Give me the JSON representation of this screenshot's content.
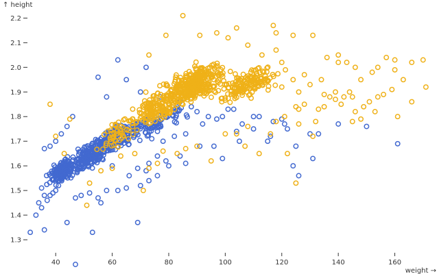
{
  "chart_data": {
    "type": "scatter",
    "title": "",
    "xlabel": "weight →",
    "ylabel": "↑ height",
    "xlim": [
      30,
      172
    ],
    "ylim": [
      1.25,
      2.24
    ],
    "x_ticks": [
      40,
      60,
      80,
      100,
      120,
      140,
      160
    ],
    "y_ticks": [
      1.3,
      1.4,
      1.5,
      1.6,
      1.7,
      1.8,
      1.9,
      2.0,
      2.1,
      2.2
    ],
    "grid": false,
    "legend": "none",
    "series": [
      {
        "color": "#4269d0",
        "points": [
          [
            47,
            1.2
          ],
          [
            31,
            1.33
          ],
          [
            36,
            1.34
          ],
          [
            53,
            1.33
          ],
          [
            44,
            1.37
          ],
          [
            69,
            1.37
          ],
          [
            33,
            1.4
          ],
          [
            35,
            1.43
          ],
          [
            34,
            1.45
          ],
          [
            37,
            1.46
          ],
          [
            36,
            1.48
          ],
          [
            38,
            1.48
          ],
          [
            39,
            1.49
          ],
          [
            35,
            1.51
          ],
          [
            40,
            1.5
          ],
          [
            41,
            1.52
          ],
          [
            55,
            1.47
          ],
          [
            56,
            1.45
          ],
          [
            47,
            1.47
          ],
          [
            49,
            1.48
          ],
          [
            52,
            1.49
          ],
          [
            58,
            1.5
          ],
          [
            62,
            1.5
          ],
          [
            65,
            1.51
          ],
          [
            70,
            1.52
          ],
          [
            73,
            1.54
          ],
          [
            76,
            1.56
          ],
          [
            69,
            1.59
          ],
          [
            73,
            1.61
          ],
          [
            80,
            1.6
          ],
          [
            86,
            1.61
          ],
          [
            99,
            1.63
          ],
          [
            96,
            1.68
          ],
          [
            105,
            1.7
          ],
          [
            104,
            1.74
          ],
          [
            110,
            1.75
          ],
          [
            115,
            1.7
          ],
          [
            116,
            1.72
          ],
          [
            122,
            1.75
          ],
          [
            125,
            1.68
          ],
          [
            124,
            1.6
          ],
          [
            131,
            1.63
          ],
          [
            130,
            1.73
          ],
          [
            133,
            1.73
          ],
          [
            140,
            1.77
          ],
          [
            150,
            1.76
          ],
          [
            161,
            1.69
          ],
          [
            126,
            1.56
          ],
          [
            62,
            2.03
          ],
          [
            72,
            2.0
          ],
          [
            65,
            1.95
          ],
          [
            55,
            1.96
          ],
          [
            58,
            1.88
          ],
          [
            70,
            1.9
          ],
          [
            77,
            1.88
          ],
          [
            84,
            1.86
          ],
          [
            88,
            1.84
          ],
          [
            90,
            1.82
          ],
          [
            94,
            1.8
          ],
          [
            99,
            1.8
          ],
          [
            101,
            1.83
          ],
          [
            103,
            1.83
          ],
          [
            110,
            1.8
          ],
          [
            112,
            1.8
          ],
          [
            117,
            1.78
          ],
          [
            120,
            1.79
          ],
          [
            121,
            1.77
          ],
          [
            106,
            1.77
          ],
          [
            97,
            1.79
          ],
          [
            92,
            1.77
          ],
          [
            86,
            1.73
          ],
          [
            82,
            1.72
          ],
          [
            78,
            1.7
          ],
          [
            76,
            1.74
          ],
          [
            74,
            1.71
          ],
          [
            42,
            1.73
          ],
          [
            40,
            1.7
          ],
          [
            38,
            1.68
          ],
          [
            36,
            1.67
          ],
          [
            46,
            1.8
          ],
          [
            44,
            1.76
          ],
          [
            58,
            1.72
          ],
          [
            60,
            1.6
          ],
          [
            84,
            1.64
          ],
          [
            76,
            1.64
          ],
          [
            91,
            1.68
          ],
          [
            79,
            1.62
          ],
          [
            72,
            1.58
          ],
          [
            66,
            1.56
          ]
        ],
        "clusters": [
          {
            "x": [
              35,
              50
            ],
            "y": [
              1.5,
              1.66
            ],
            "n": 160
          },
          {
            "x": [
              43,
              60
            ],
            "y": [
              1.54,
              1.73
            ],
            "n": 170
          },
          {
            "x": [
              50,
              68
            ],
            "y": [
              1.6,
              1.8
            ],
            "n": 120
          },
          {
            "x": [
              57,
              80
            ],
            "y": [
              1.64,
              1.84
            ],
            "n": 80
          },
          {
            "x": [
              65,
              95
            ],
            "y": [
              1.7,
              1.9
            ],
            "n": 40
          }
        ]
      },
      {
        "color": "#efb118",
        "points": [
          [
            85,
            2.21
          ],
          [
            104,
            2.16
          ],
          [
            108,
            2.09
          ],
          [
            117,
            2.17
          ],
          [
            118,
            2.14
          ],
          [
            124,
            2.13
          ],
          [
            131,
            2.13
          ],
          [
            97,
            2.14
          ],
          [
            91,
            2.13
          ],
          [
            101,
            2.12
          ],
          [
            79,
            2.13
          ],
          [
            73,
            2.05
          ],
          [
            136,
            2.04
          ],
          [
            140,
            2.05
          ],
          [
            140,
            2.02
          ],
          [
            143,
            2.02
          ],
          [
            146,
            2.0
          ],
          [
            152,
            1.98
          ],
          [
            148,
            1.95
          ],
          [
            154,
            2.0
          ],
          [
            157,
            2.04
          ],
          [
            160,
            2.03
          ],
          [
            160,
            1.99
          ],
          [
            166,
            2.02
          ],
          [
            170,
            2.03
          ],
          [
            171,
            1.92
          ],
          [
            163,
            1.95
          ],
          [
            159,
            1.91
          ],
          [
            156,
            1.89
          ],
          [
            154,
            1.88
          ],
          [
            151,
            1.86
          ],
          [
            149,
            1.84
          ],
          [
            148,
            1.79
          ],
          [
            144,
            1.9
          ],
          [
            145,
            1.88
          ],
          [
            146,
            1.82
          ],
          [
            142,
            1.88
          ],
          [
            141,
            1.85
          ],
          [
            139,
            1.87
          ],
          [
            139,
            1.9
          ],
          [
            137,
            1.88
          ],
          [
            135,
            1.89
          ],
          [
            135,
            1.84
          ],
          [
            133,
            1.83
          ],
          [
            132,
            1.78
          ],
          [
            166,
            1.86
          ],
          [
            161,
            1.8
          ],
          [
            153,
            1.82
          ],
          [
            145,
            1.78
          ],
          [
            38,
            1.85
          ],
          [
            45,
            1.79
          ],
          [
            40,
            1.72
          ],
          [
            43,
            1.65
          ],
          [
            52,
            1.53
          ],
          [
            51,
            1.44
          ],
          [
            56,
            1.58
          ],
          [
            60,
            1.59
          ],
          [
            63,
            1.64
          ],
          [
            68,
            1.65
          ],
          [
            71,
            1.5
          ],
          [
            73,
            1.59
          ],
          [
            76,
            1.61
          ],
          [
            78,
            1.66
          ],
          [
            83,
            1.65
          ],
          [
            86,
            1.67
          ],
          [
            90,
            1.68
          ],
          [
            95,
            1.62
          ],
          [
            100,
            1.73
          ],
          [
            104,
            1.73
          ],
          [
            107,
            1.68
          ],
          [
            116,
            1.73
          ],
          [
            125,
            1.53
          ],
          [
            126,
            1.77
          ],
          [
            131,
            1.72
          ],
          [
            122,
            1.65
          ],
          [
            112,
            1.65
          ],
          [
            108,
            1.76
          ],
          [
            118,
            1.78
          ],
          [
            125,
            1.84
          ],
          [
            128,
            1.97
          ],
          [
            130,
            1.93
          ],
          [
            124,
            1.95
          ],
          [
            120,
            1.92
          ],
          [
            126,
            1.9
          ],
          [
            134,
            1.95
          ],
          [
            128,
            1.85
          ],
          [
            126,
            1.83
          ],
          [
            121,
            1.8
          ],
          [
            118,
            2.07
          ],
          [
            113,
            2.05
          ],
          [
            120,
            2.02
          ]
        ],
        "clusters": [
          {
            "x": [
              72,
              106
            ],
            "y": [
              1.8,
              2.06
            ],
            "n": 340
          },
          {
            "x": [
              60,
              90
            ],
            "y": [
              1.7,
              1.96
            ],
            "n": 140
          },
          {
            "x": [
              90,
              125
            ],
            "y": [
              1.82,
              2.05
            ],
            "n": 160
          },
          {
            "x": [
              50,
              75
            ],
            "y": [
              1.62,
              1.85
            ],
            "n": 50
          }
        ]
      }
    ]
  }
}
